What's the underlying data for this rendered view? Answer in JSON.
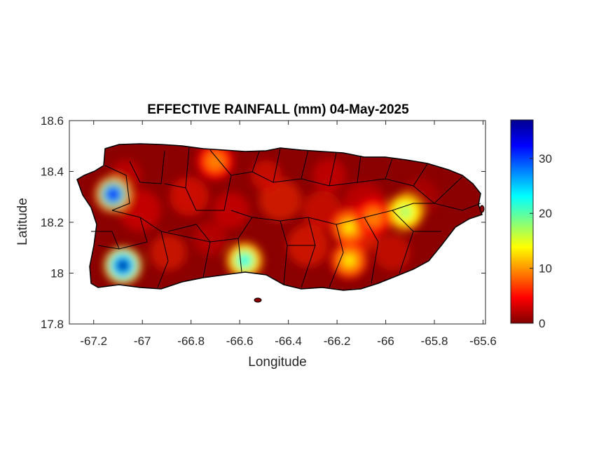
{
  "map": {
    "title": "EFFECTIVE RAINFALL (mm) 04-May-2025",
    "xlabel": "Longitude",
    "ylabel": "Latitude",
    "region": "Puerto Rico",
    "xlim": [
      -67.3,
      -65.59
    ],
    "ylim": [
      17.8,
      18.6
    ],
    "xticks": [
      "-67.2",
      "-67",
      "-66.8",
      "-66.6",
      "-66.4",
      "-66.2",
      "-66",
      "-65.8",
      "-65.6"
    ],
    "yticks": [
      "18.6",
      "18.4",
      "18.2",
      "18",
      "17.8"
    ],
    "colormap": "jet",
    "colorbar": {
      "min": 0,
      "max": 37,
      "ticks": [
        "0",
        "10",
        "20",
        "30"
      ],
      "colors": [
        "#800000",
        "#ff0000",
        "#ff8000",
        "#ffff00",
        "#80ff80",
        "#00ffff",
        "#0080ff",
        "#0000ff",
        "#00008f"
      ]
    },
    "background_color": "#8b0000",
    "hotspots": [
      {
        "lon": -67.12,
        "lat": 18.31,
        "value": 32
      },
      {
        "lon": -67.08,
        "lat": 18.03,
        "value": 36
      },
      {
        "lon": -66.58,
        "lat": 18.05,
        "value": 22
      },
      {
        "lon": -66.7,
        "lat": 18.44,
        "value": 10
      },
      {
        "lon": -65.92,
        "lat": 18.24,
        "value": 20
      },
      {
        "lon": -66.15,
        "lat": 18.05,
        "value": 14
      },
      {
        "lon": -66.15,
        "lat": 18.18,
        "value": 12
      },
      {
        "lon": -66.05,
        "lat": 18.22,
        "value": 11
      }
    ]
  }
}
